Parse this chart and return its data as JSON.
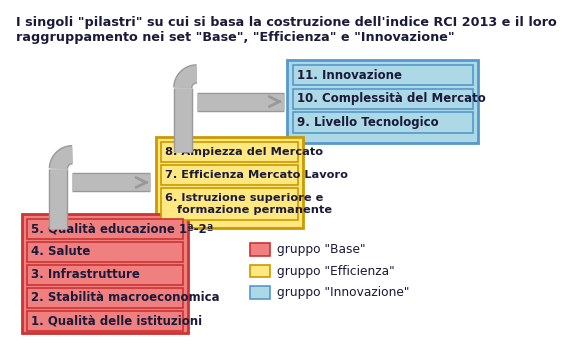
{
  "title": "I singoli \"pilastri\" su cui si basa la costruzione dell'indice RCI 2013 e il loro\nraggruppamento nei set \"Base\", \"Efficienza\" e \"Innovazione\"",
  "base_items": [
    "5. Qualità educazione 1ª-2ª",
    "4. Salute",
    "3. Infrastrutture",
    "2. Stabilità macroeconomica",
    "1. Qualità delle istituzioni"
  ],
  "efficienza_items": [
    "8. Ampiezza del Mercato",
    "7. Efficienza Mercato Lavoro",
    "6. Istruzione superiore e\n   formazione permanente"
  ],
  "innovazione_items": [
    "11. Innovazione",
    "10. Complessità del Mercato",
    "9. Livello Tecnologico"
  ],
  "color_base_fill": "#F08080",
  "color_base_border": "#CC3333",
  "color_efficienza_fill": "#FFE880",
  "color_efficienza_border": "#CC9900",
  "color_innovazione_fill": "#ADD8E6",
  "color_innovazione_border": "#5599CC",
  "color_text": "#1a1a3a",
  "legend_labels": [
    "gruppo \"Base\"",
    "gruppo \"Efficienza\"",
    "gruppo \"Innovazione\""
  ],
  "legend_colors": [
    "#F08080",
    "#FFE880",
    "#ADD8E6"
  ],
  "legend_border_colors": [
    "#CC3333",
    "#CC9900",
    "#5599CC"
  ],
  "arrow_color": "#BBBBBB",
  "arrow_edge_color": "#999999"
}
